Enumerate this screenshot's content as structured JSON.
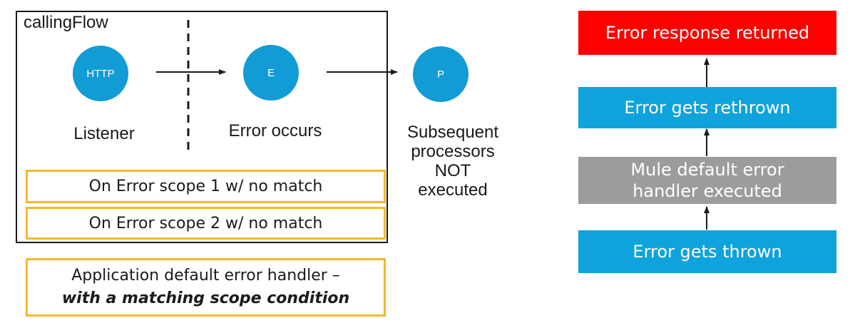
{
  "flow": {
    "title": "callingFlow",
    "nodes": [
      {
        "id": "http",
        "circle_text": "HTTP",
        "label": "Listener"
      },
      {
        "id": "e",
        "circle_text": "E",
        "label": "Error occurs"
      },
      {
        "id": "p",
        "circle_text": "P",
        "label_lines": [
          "Subsequent",
          "processors NOT",
          "executed"
        ]
      }
    ],
    "scopes": [
      "On Error scope 1 w/ no match",
      "On Error scope 2 w/ no match"
    ]
  },
  "app_handler": {
    "line1": "Application default error handler –",
    "line2": "with a matching scope condition"
  },
  "stack": [
    {
      "text": "Error response returned",
      "color": "#ff0000"
    },
    {
      "text": "Error gets rethrown",
      "color": "#0ea3dd"
    },
    {
      "lines": [
        "Mule default error",
        "handler executed"
      ],
      "color": "#9c9c9c"
    },
    {
      "text": "Error gets thrown",
      "color": "#0ea3dd"
    }
  ],
  "colors": {
    "node": "#129cd6",
    "scope_border": "#f5b82e"
  }
}
